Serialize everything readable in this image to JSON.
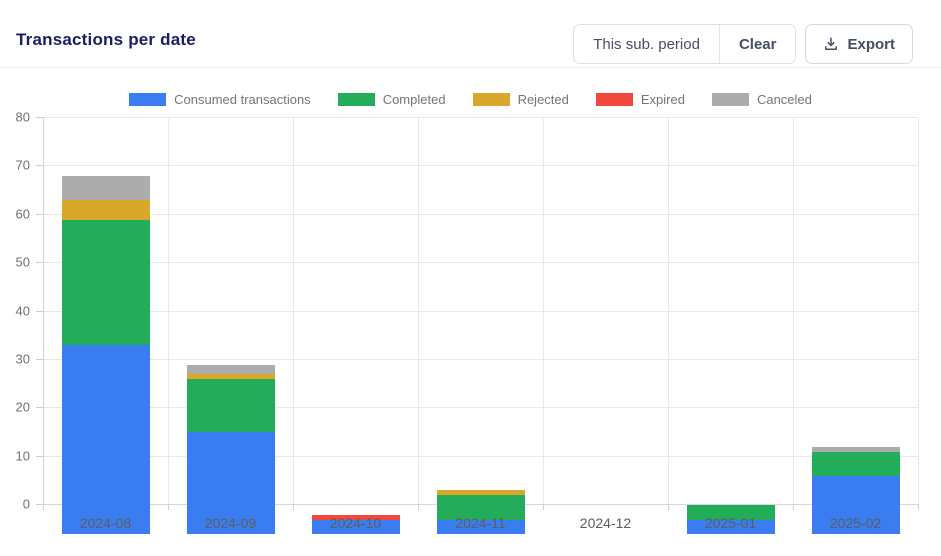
{
  "header": {
    "title": "Transactions per date",
    "controls": {
      "period": "This sub. period",
      "clear": "Clear",
      "export": "Export"
    }
  },
  "chart_data": {
    "type": "bar",
    "stacked": true,
    "title": "Transactions per date",
    "categories": [
      "2024-08",
      "2024-09",
      "2024-10",
      "2024-11",
      "2024-12",
      "2025-01",
      "2025-02"
    ],
    "series": [
      {
        "name": "Consumed transactions",
        "color": "#3a7df0",
        "values": [
          39,
          21,
          3,
          3,
          0,
          3,
          12
        ]
      },
      {
        "name": "Completed",
        "color": "#23ad5b",
        "values": [
          26,
          11,
          0,
          5,
          0,
          3,
          5
        ]
      },
      {
        "name": "Rejected",
        "color": "#d9a72b",
        "values": [
          4,
          1,
          0,
          1,
          0,
          0,
          0
        ]
      },
      {
        "name": "Expired",
        "color": "#f0483c",
        "values": [
          0,
          0,
          1,
          0,
          0,
          0,
          0
        ]
      },
      {
        "name": "Canceled",
        "color": "#acacac",
        "values": [
          5,
          2,
          0,
          0,
          0,
          0,
          1
        ]
      }
    ],
    "totals": [
      74,
      35,
      4,
      9,
      0,
      6,
      18
    ],
    "ylim": [
      0,
      80
    ],
    "yticks": [
      0,
      10,
      20,
      30,
      40,
      50,
      60,
      70,
      80
    ],
    "xlabel": "",
    "ylabel": "",
    "grid": true,
    "legend_position": "top"
  }
}
